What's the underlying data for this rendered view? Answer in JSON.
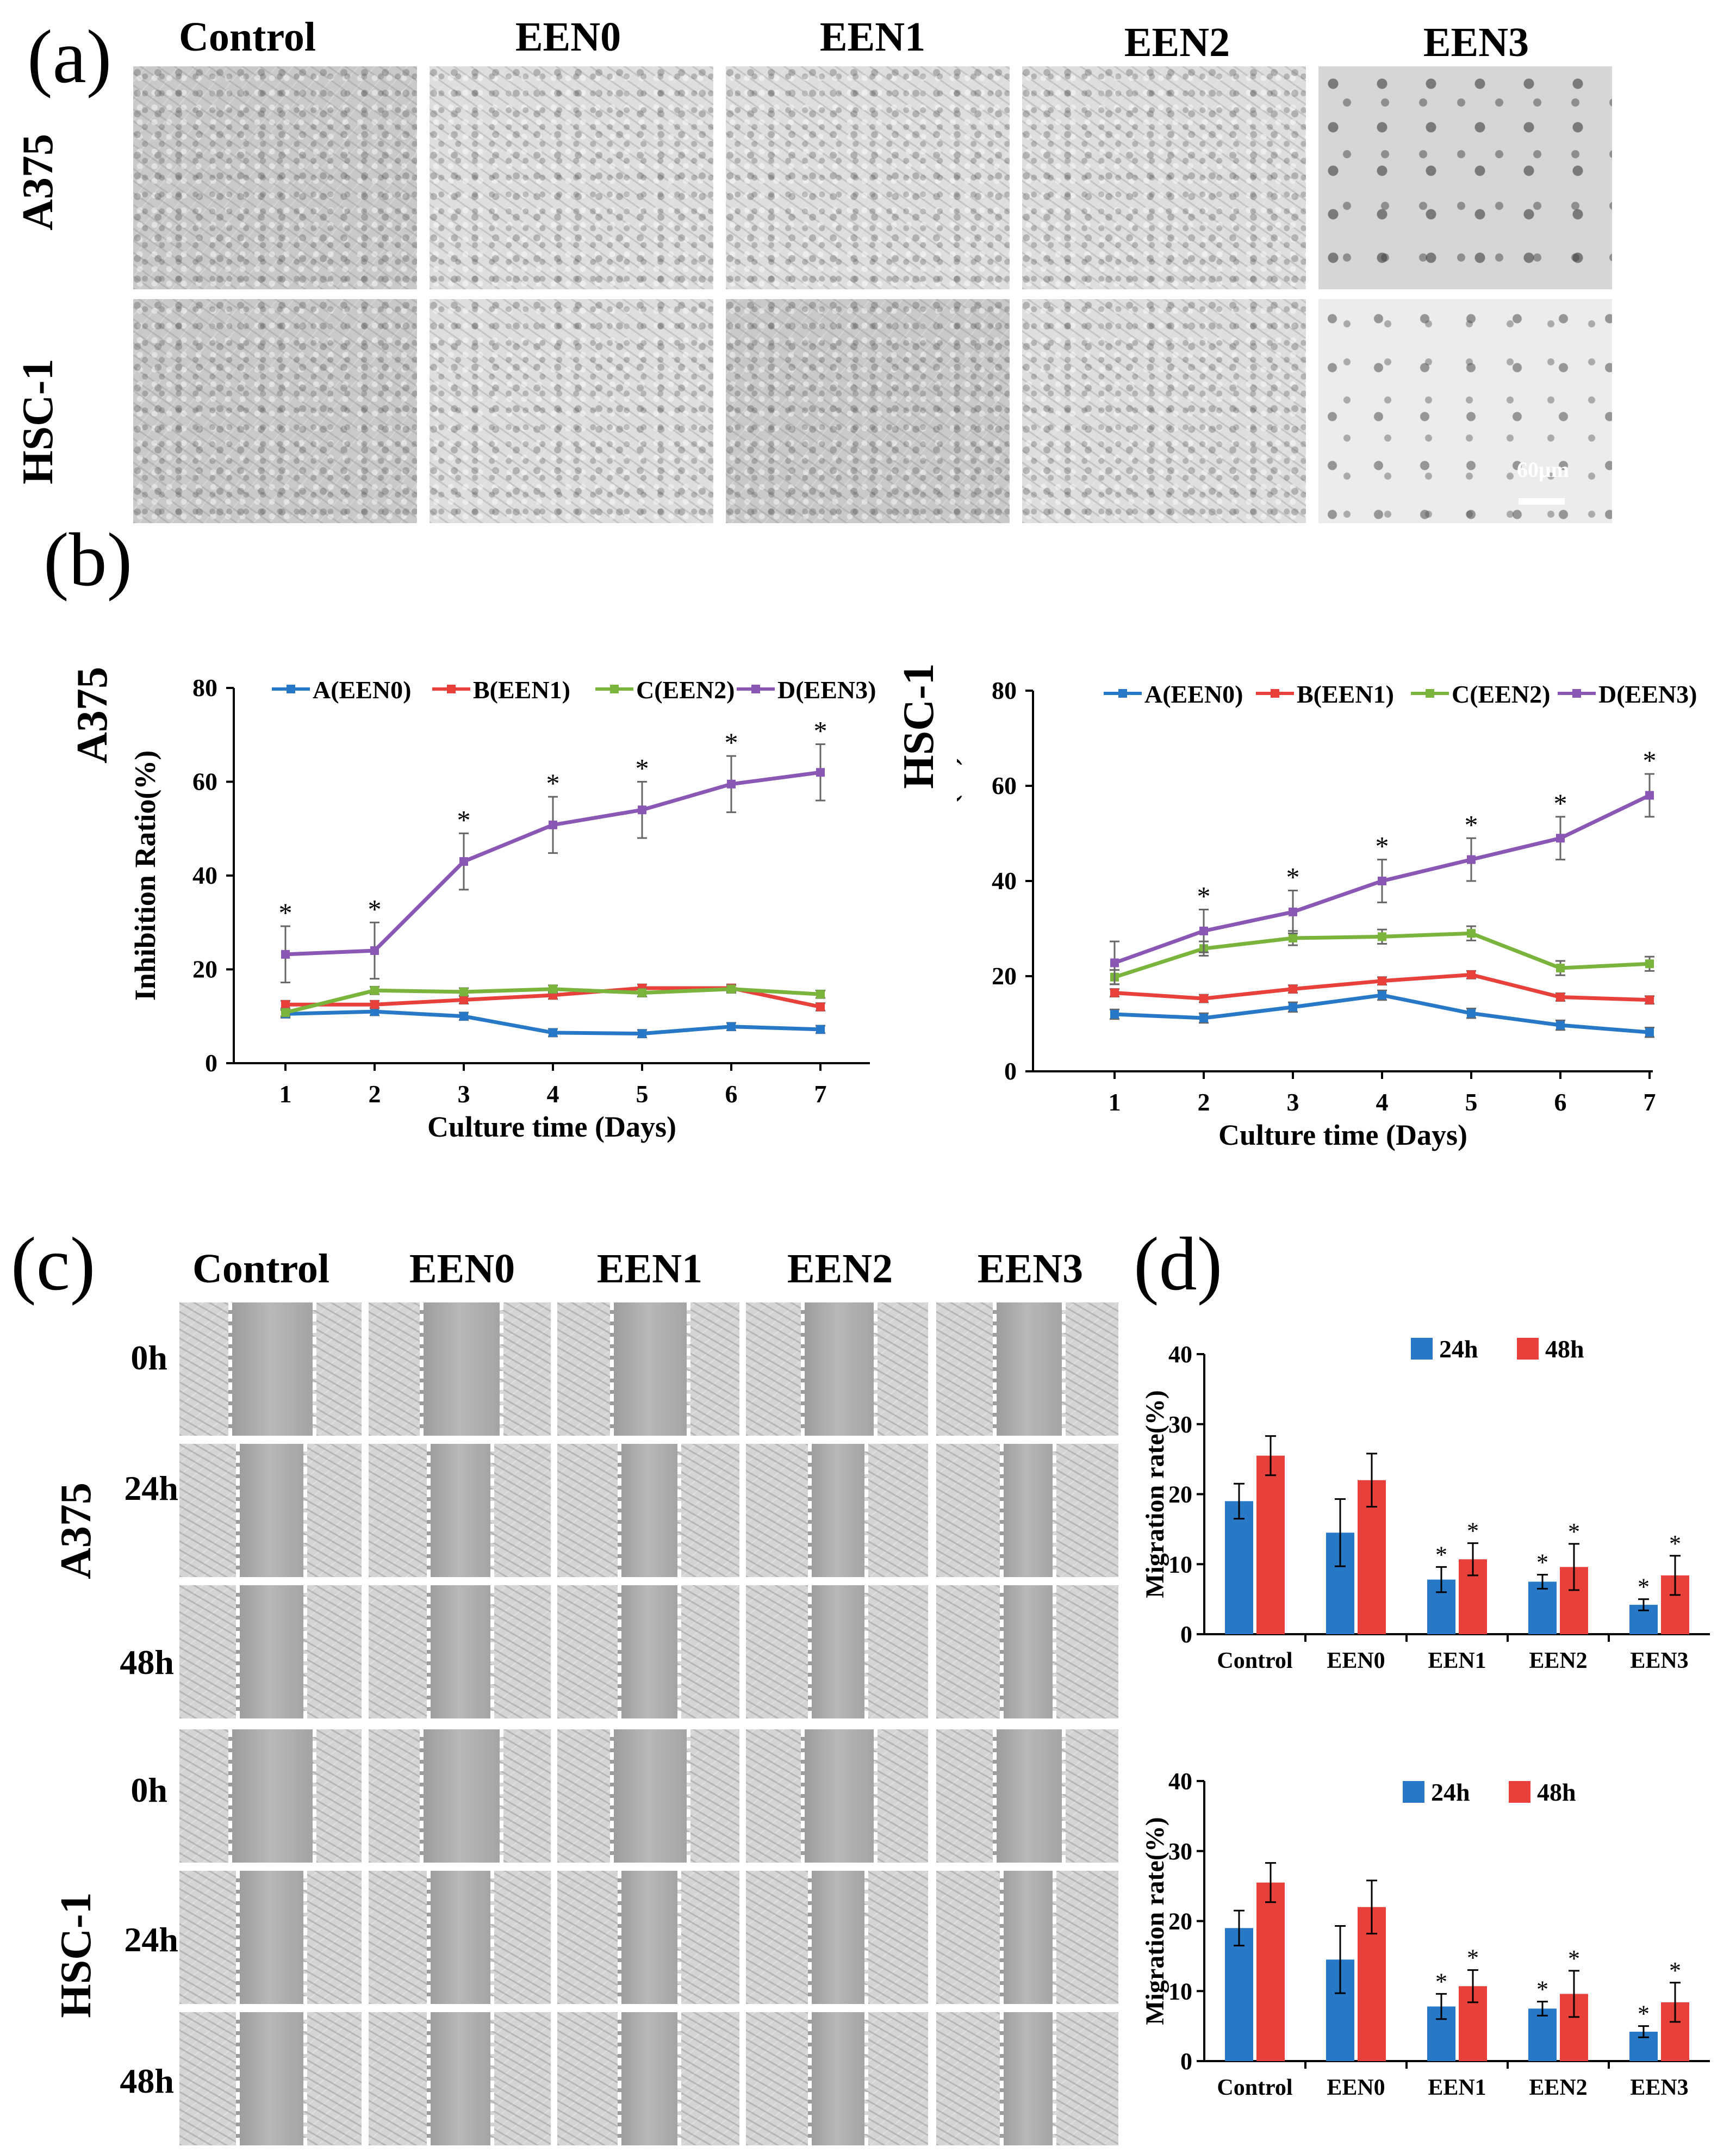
{
  "panels": {
    "a": "(a)",
    "b": "(b)",
    "c": "(c)",
    "d": "(d)"
  },
  "panel_a": {
    "columns": [
      "Control",
      "EEN0",
      "EEN1",
      "EEN2",
      "EEN3"
    ],
    "rows": [
      "A375",
      "HSC-1"
    ],
    "scale_bar": "60μm"
  },
  "panel_c": {
    "columns": [
      "Control",
      "EEN0",
      "EEN1",
      "EEN2",
      "EEN3"
    ],
    "groups": [
      "A375",
      "HSC-1"
    ],
    "times": [
      "0h",
      "24h",
      "48h"
    ]
  },
  "colors": {
    "blue": "#2878c8",
    "red": "#e8413c",
    "green": "#7ab43c",
    "purple": "#8a58b4",
    "err": "#555555"
  },
  "chart_data": [
    {
      "type": "line",
      "id": "b_a375",
      "side_label": "A375",
      "xlabel": "Culture time (Days)",
      "ylabel": "Inhibition Ratio(%)",
      "ylim": [
        0,
        80
      ],
      "yticks": [
        0,
        20,
        40,
        60,
        80
      ],
      "x": [
        1,
        2,
        3,
        4,
        5,
        6,
        7
      ],
      "series": [
        {
          "name": "A(EEN0)",
          "color": "#2878c8",
          "values": [
            10.5,
            11,
            10,
            6.5,
            6.3,
            7.8,
            7.2
          ],
          "errors": [
            0.8,
            0.8,
            0.8,
            0.8,
            0.8,
            0.8,
            0.8
          ]
        },
        {
          "name": "B(EEN1)",
          "color": "#e8413c",
          "values": [
            12.5,
            12.5,
            13.5,
            14.5,
            16,
            16,
            12
          ],
          "errors": [
            0.8,
            0.8,
            0.8,
            0.8,
            0.8,
            0.8,
            0.8
          ]
        },
        {
          "name": "C(EEN2)",
          "color": "#7ab43c",
          "values": [
            10.8,
            15.5,
            15.2,
            15.8,
            15,
            15.8,
            14.7
          ],
          "errors": [
            0.8,
            0.8,
            0.8,
            0.8,
            0.8,
            0.8,
            0.8
          ]
        },
        {
          "name": "D(EEN3)",
          "color": "#8a58b4",
          "values": [
            23.2,
            24,
            43,
            50.8,
            54,
            59.5,
            62
          ],
          "errors": [
            6,
            6,
            6,
            6,
            6,
            6,
            6
          ]
        }
      ],
      "annotations": [
        "*",
        "*",
        "*",
        "*",
        "*",
        "*",
        "*"
      ]
    },
    {
      "type": "line",
      "id": "b_hsc1",
      "side_label": "HSC-1",
      "xlabel": "Culture time (Days)",
      "ylabel": "Inhibition Ratio(%)",
      "ylim": [
        0,
        80
      ],
      "yticks": [
        0,
        20,
        40,
        60,
        80
      ],
      "x": [
        1,
        2,
        3,
        4,
        5,
        6,
        7
      ],
      "series": [
        {
          "name": "A(EEN0)",
          "color": "#2878c8",
          "values": [
            12,
            11.2,
            13.5,
            16,
            12.2,
            9.7,
            8.2
          ],
          "errors": [
            1,
            1,
            1,
            1,
            1,
            1,
            1
          ]
        },
        {
          "name": "B(EEN1)",
          "color": "#e8413c",
          "values": [
            16.5,
            15.3,
            17.3,
            19,
            20.3,
            15.6,
            15
          ],
          "errors": [
            0.8,
            0.8,
            0.8,
            0.8,
            0.8,
            0.8,
            0.8
          ]
        },
        {
          "name": "C(EEN2)",
          "color": "#7ab43c",
          "values": [
            19.8,
            25.8,
            28,
            28.3,
            29,
            21.7,
            22.6
          ],
          "errors": [
            1.5,
            1.5,
            1.5,
            1.5,
            1.5,
            1.5,
            1.5
          ]
        },
        {
          "name": "D(EEN3)",
          "color": "#8a58b4",
          "values": [
            22.8,
            29.5,
            33.5,
            40,
            44.5,
            49,
            58
          ],
          "errors": [
            4.5,
            4.5,
            4.5,
            4.5,
            4.5,
            4.5,
            4.5
          ]
        }
      ],
      "annotations": [
        "",
        "*",
        "*",
        "*",
        "*",
        "*",
        "*"
      ]
    },
    {
      "type": "bar",
      "id": "d_top",
      "ylabel": "Migration rate(%)",
      "ylim": [
        0,
        40
      ],
      "yticks": [
        0,
        10,
        20,
        30,
        40
      ],
      "categories": [
        "Control",
        "EEN0",
        "EEN1",
        "EEN2",
        "EEN3"
      ],
      "series": [
        {
          "name": "24h",
          "color": "#2878c8",
          "values": [
            19,
            14.5,
            7.8,
            7.5,
            4.2
          ],
          "errors": [
            2.5,
            4.8,
            1.8,
            1,
            0.8
          ],
          "stars": [
            "",
            "",
            "*",
            "*",
            "*"
          ]
        },
        {
          "name": "48h",
          "color": "#e8413c",
          "values": [
            25.5,
            22,
            10.7,
            9.6,
            8.4
          ],
          "errors": [
            2.8,
            3.8,
            2.3,
            3.3,
            2.8
          ],
          "stars": [
            "",
            "",
            "*",
            "*",
            "*"
          ]
        }
      ]
    },
    {
      "type": "bar",
      "id": "d_bottom",
      "ylabel": "Migration rate(%)",
      "ylim": [
        0,
        40
      ],
      "yticks": [
        0,
        10,
        20,
        30,
        40
      ],
      "categories": [
        "Control",
        "EEN0",
        "EEN1",
        "EEN2",
        "EEN3"
      ],
      "series": [
        {
          "name": "24h",
          "color": "#2878c8",
          "values": [
            19,
            14.5,
            7.8,
            7.5,
            4.2
          ],
          "errors": [
            2.5,
            4.8,
            1.8,
            1,
            0.8
          ],
          "stars": [
            "",
            "",
            "*",
            "*",
            "*"
          ]
        },
        {
          "name": "48h",
          "color": "#e8413c",
          "values": [
            25.5,
            22,
            10.7,
            9.6,
            8.4
          ],
          "errors": [
            2.8,
            3.8,
            2.3,
            3.3,
            2.8
          ],
          "stars": [
            "",
            "",
            "*",
            "*",
            "*"
          ]
        }
      ]
    }
  ]
}
